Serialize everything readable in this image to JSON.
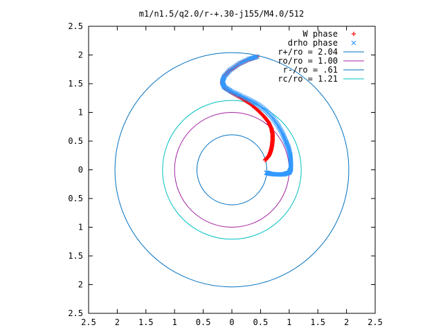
{
  "chart_data": {
    "type": "scatter",
    "title": "m1/n1.5/q2.0/r-+.30-j155/M4.0/512",
    "xlabel": "",
    "ylabel": "",
    "xlim": [
      -2.5,
      2.5
    ],
    "ylim": [
      -2.5,
      2.5
    ],
    "x_ticks": [
      -2.5,
      -2,
      -1.5,
      -1,
      -0.5,
      0,
      0.5,
      1,
      1.5,
      2,
      2.5
    ],
    "y_ticks": [
      -2.5,
      -2,
      -1.5,
      -1,
      -0.5,
      0,
      0.5,
      1,
      1.5,
      2,
      2.5
    ],
    "x_tick_labels": [
      "2.5",
      "2",
      "1.5",
      "1",
      "0.5",
      "0",
      "0.5",
      "1",
      "1.5",
      "2",
      "2.5"
    ],
    "y_tick_labels": [
      "2.5",
      "2",
      "1.5",
      "1",
      "0.5",
      "0",
      "0.5",
      "1",
      "1.5",
      "2",
      "2.5"
    ],
    "grid": false,
    "legend_position": "top-right",
    "series": [
      {
        "name": "W phase",
        "marker": "+",
        "color": "#ff0000",
        "points": [
          [
            0.44,
            1.97
          ],
          [
            0.3,
            1.92
          ],
          [
            0.12,
            1.84
          ],
          [
            -0.05,
            1.72
          ],
          [
            -0.14,
            1.62
          ],
          [
            -0.17,
            1.52
          ],
          [
            -0.12,
            1.42
          ],
          [
            0.02,
            1.33
          ],
          [
            0.18,
            1.24
          ],
          [
            0.32,
            1.15
          ],
          [
            0.45,
            1.04
          ],
          [
            0.56,
            0.93
          ],
          [
            0.64,
            0.83
          ],
          [
            0.69,
            0.72
          ],
          [
            0.71,
            0.62
          ],
          [
            0.71,
            0.52
          ],
          [
            0.7,
            0.42
          ],
          [
            0.68,
            0.33
          ],
          [
            0.65,
            0.25
          ],
          [
            0.61,
            0.2
          ],
          [
            0.58,
            0.17
          ]
        ]
      },
      {
        "name": "drho phase",
        "marker": "x",
        "color": "#3399ff",
        "points": [
          [
            0.44,
            1.97
          ],
          [
            0.3,
            1.93
          ],
          [
            0.13,
            1.85
          ],
          [
            -0.03,
            1.74
          ],
          [
            -0.13,
            1.63
          ],
          [
            -0.17,
            1.53
          ],
          [
            -0.13,
            1.44
          ],
          [
            -0.02,
            1.37
          ],
          [
            0.13,
            1.3
          ],
          [
            0.3,
            1.22
          ],
          [
            0.45,
            1.14
          ],
          [
            0.58,
            1.04
          ],
          [
            0.7,
            0.92
          ],
          [
            0.8,
            0.78
          ],
          [
            0.88,
            0.64
          ],
          [
            0.94,
            0.5
          ],
          [
            0.99,
            0.38
          ],
          [
            1.02,
            0.25
          ],
          [
            1.03,
            0.13
          ],
          [
            1.03,
            0.02
          ],
          [
            1.0,
            -0.05
          ],
          [
            0.9,
            -0.08
          ],
          [
            0.78,
            -0.08
          ],
          [
            0.67,
            -0.07
          ],
          [
            0.6,
            -0.05
          ]
        ]
      }
    ],
    "circles": [
      {
        "name": "r+/ro = 2.04",
        "radius": 2.04,
        "color": "#0070c0"
      },
      {
        "name": "ro/ro = 1.00",
        "radius": 1.0,
        "color": "#a020a0"
      },
      {
        "name": "r-/ro = .61",
        "radius": 0.61,
        "color": "#0070c0"
      },
      {
        "name": "rc/ro = 1.21",
        "radius": 1.21,
        "color": "#00c0c0"
      }
    ]
  }
}
